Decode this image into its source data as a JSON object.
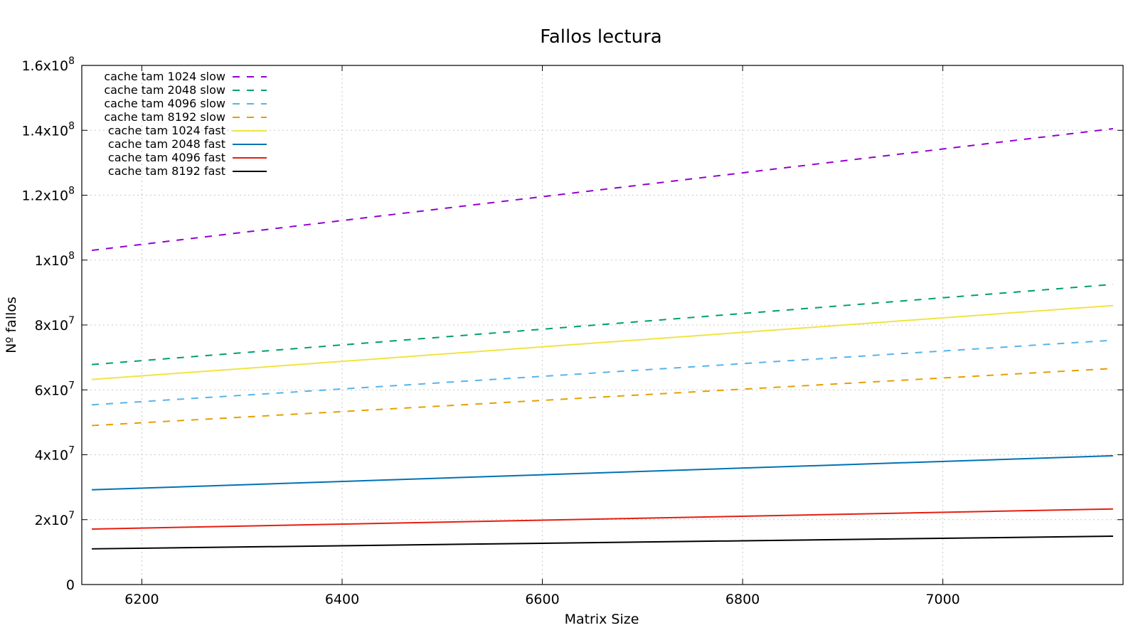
{
  "chart_data": {
    "type": "line",
    "title": "Fallos lectura",
    "xlabel": "Matrix Size",
    "ylabel": "Nº fallos",
    "xlim": [
      6140,
      7180
    ],
    "ylim": [
      0,
      160000000
    ],
    "grid": true,
    "legend_position": "top-left",
    "x_ticks": [
      {
        "value": 6200,
        "label": "6200"
      },
      {
        "value": 6400,
        "label": "6400"
      },
      {
        "value": 6600,
        "label": "6600"
      },
      {
        "value": 6800,
        "label": "6800"
      },
      {
        "value": 7000,
        "label": "7000"
      }
    ],
    "y_ticks": [
      {
        "value": 0,
        "label": "0",
        "exp": ""
      },
      {
        "value": 20000000,
        "label": "2x10",
        "exp": "7"
      },
      {
        "value": 40000000,
        "label": "4x10",
        "exp": "7"
      },
      {
        "value": 60000000,
        "label": "6x10",
        "exp": "7"
      },
      {
        "value": 80000000,
        "label": "8x10",
        "exp": "7"
      },
      {
        "value": 100000000,
        "label": "1x10",
        "exp": "8"
      },
      {
        "value": 120000000,
        "label": "1.2x10",
        "exp": "8"
      },
      {
        "value": 140000000,
        "label": "1.4x10",
        "exp": "8"
      },
      {
        "value": 160000000,
        "label": "1.6x10",
        "exp": "8"
      }
    ],
    "x": [
      6150,
      7170
    ],
    "series": [
      {
        "name": "cache tam 1024 slow",
        "color": "#9400d3",
        "dashed": true,
        "values": [
          103000000,
          140500000
        ]
      },
      {
        "name": "cache tam 2048 slow",
        "color": "#009e73",
        "dashed": true,
        "values": [
          67800000,
          92500000
        ]
      },
      {
        "name": "cache tam 4096 slow",
        "color": "#56b4e9",
        "dashed": true,
        "values": [
          55400000,
          75300000
        ]
      },
      {
        "name": "cache tam 8192 slow",
        "color": "#e69f00",
        "dashed": true,
        "values": [
          49000000,
          66600000
        ]
      },
      {
        "name": "cache tam 1024 fast",
        "color": "#f0e442",
        "dashed": false,
        "values": [
          63200000,
          86000000
        ]
      },
      {
        "name": "cache tam 2048 fast",
        "color": "#0072b2",
        "dashed": false,
        "values": [
          29200000,
          39700000
        ]
      },
      {
        "name": "cache tam 4096 fast",
        "color": "#e51e10",
        "dashed": false,
        "values": [
          17100000,
          23300000
        ]
      },
      {
        "name": "cache tam 8192 fast",
        "color": "#000000",
        "dashed": false,
        "values": [
          11000000,
          14900000
        ]
      }
    ]
  }
}
